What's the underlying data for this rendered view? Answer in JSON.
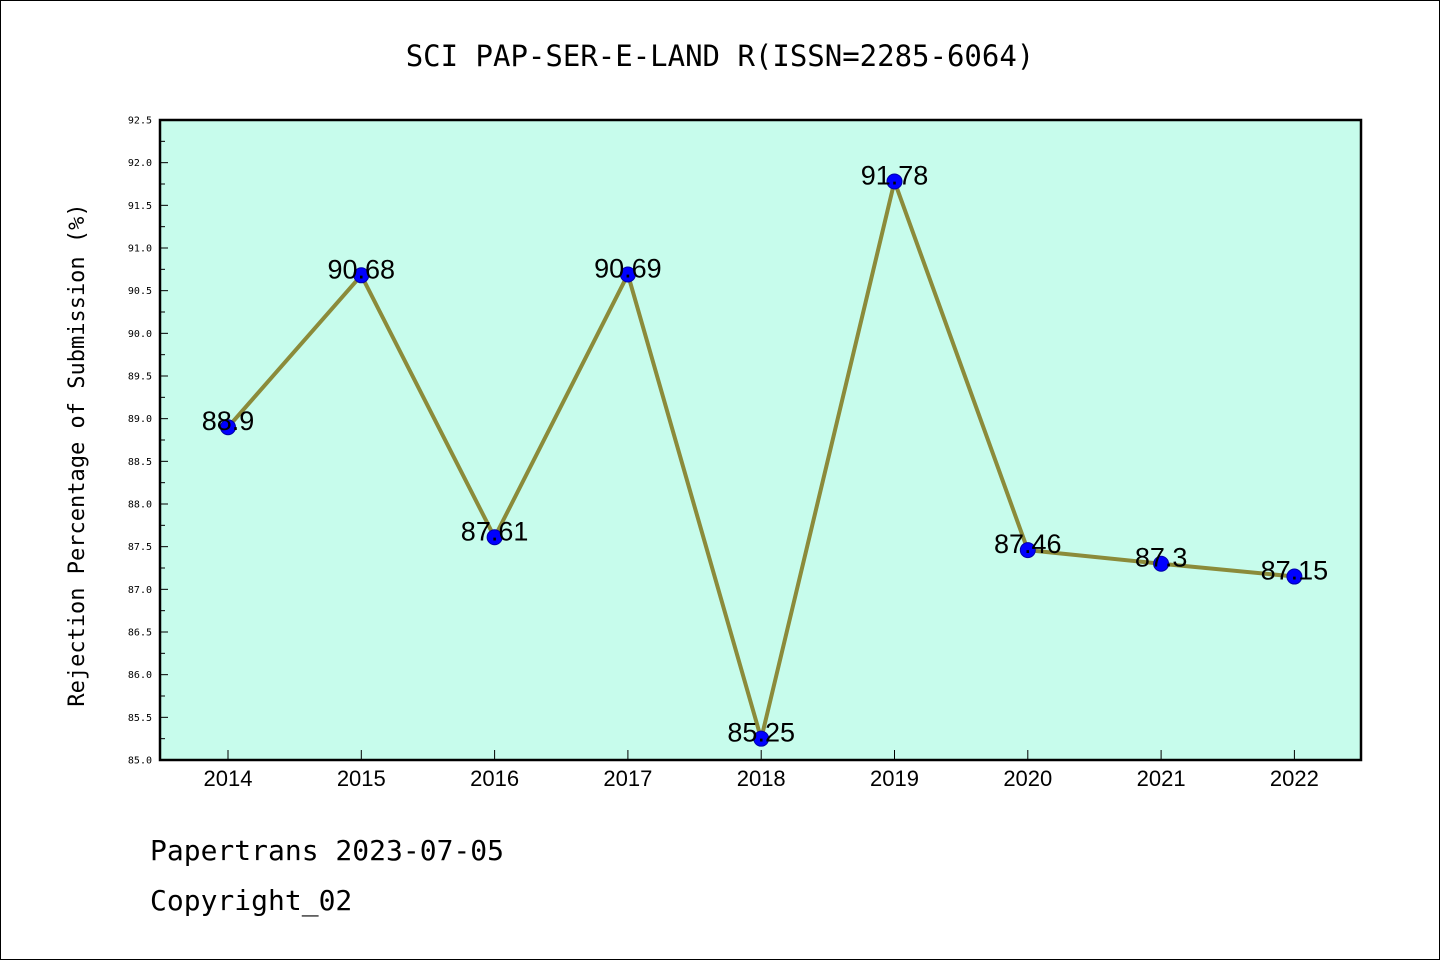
{
  "chart_data": {
    "type": "line",
    "title": "SCI PAP-SER-E-LAND R(ISSN=2285-6064)",
    "xlabel": "",
    "ylabel": "Rejection Percentage of Submission (%)",
    "categories": [
      "2014",
      "2015",
      "2016",
      "2017",
      "2018",
      "2019",
      "2020",
      "2021",
      "2022"
    ],
    "values": [
      88.9,
      90.68,
      87.61,
      90.69,
      85.25,
      91.78,
      87.46,
      87.3,
      87.15
    ],
    "data_labels": [
      "88.9",
      "90.68",
      "87.61",
      "90.69",
      "85.25",
      "91.78",
      "87.46",
      "87.3",
      "87.15"
    ],
    "ylim": [
      85.0,
      92.5
    ],
    "yticks": [
      "85.0",
      "85.5",
      "86.0",
      "86.5",
      "87.0",
      "87.5",
      "88.0",
      "88.5",
      "89.0",
      "89.5",
      "90.0",
      "90.5",
      "91.0",
      "91.5",
      "92.0",
      "92.5"
    ],
    "grid": false,
    "legend": "none",
    "colors": {
      "plot_background": "#c7fcec",
      "line": "#8b8b3a",
      "marker": "#0000ff"
    }
  },
  "footer": {
    "source": "Papertrans 2023-07-05",
    "copyright": "Copyright_02"
  }
}
